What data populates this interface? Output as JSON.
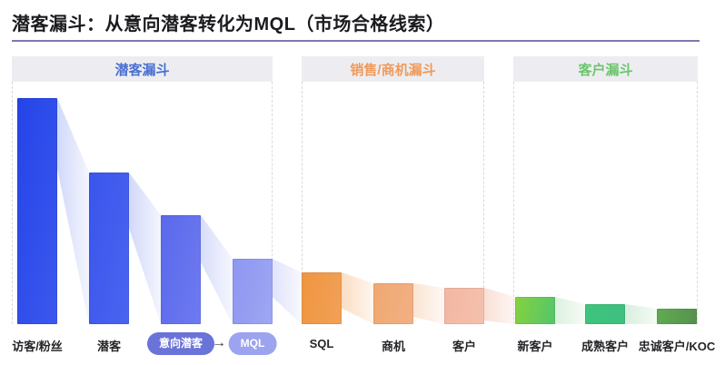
{
  "title": "潜客漏斗：从意向潜客转化为MQL（市场合格线索）",
  "title_underline_color": "#7f78ab",
  "sections": [
    {
      "label": "潜客漏斗",
      "color": "#4a6fd0",
      "band_bg": "#ededf1"
    },
    {
      "label": "销售/商机漏斗",
      "color": "#f09a5a",
      "band_bg": "#ededf1"
    },
    {
      "label": "客户漏斗",
      "color": "#6cc46e",
      "band_bg": "#ededf1"
    }
  ],
  "flow": {
    "arrow": "→"
  },
  "highlight_pills": [
    {
      "label": "意向潜客",
      "bg": "#6a73d8",
      "text_color": "#ffffff"
    },
    {
      "label": "MQL",
      "bg": "#9ca3ef",
      "text_color": "#ffffff"
    }
  ],
  "chart_data": {
    "type": "bar",
    "subtype": "funnel-flow",
    "title": "潜客漏斗：从意向潜客转化为MQL（市场合格线索）",
    "xlabel": "",
    "ylabel": "",
    "ylim": [
      0,
      100
    ],
    "grid": false,
    "legend": false,
    "note": "No numeric axis shown; values are relative bar heights with the first stage = 100.",
    "categories": [
      "访客/粉丝",
      "潜客",
      "意向潜客",
      "MQL",
      "SQL",
      "商机",
      "客户",
      "新客户",
      "成熟客户",
      "忠诚客户/KOC"
    ],
    "values": [
      100,
      67,
      48,
      29,
      23,
      18,
      16,
      12,
      9,
      7
    ],
    "highlighted_categories": [
      "意向潜客",
      "MQL"
    ],
    "groups": [
      {
        "name": "潜客漏斗",
        "categories": [
          "访客/粉丝",
          "潜客",
          "意向潜客",
          "MQL"
        ],
        "values": [
          100,
          67,
          48,
          29
        ],
        "palette": "blue-purple"
      },
      {
        "name": "销售/商机漏斗",
        "categories": [
          "SQL",
          "商机",
          "客户"
        ],
        "values": [
          23,
          18,
          16
        ],
        "palette": "orange"
      },
      {
        "name": "客户漏斗",
        "categories": [
          "新客户",
          "成熟客户",
          "忠诚客户/KOC"
        ],
        "values": [
          12,
          9,
          7
        ],
        "palette": "green"
      }
    ],
    "bar_colors": [
      [
        "#2444e8",
        "#3c58ee"
      ],
      [
        "#3a55ec",
        "#4a64f0"
      ],
      [
        "#5a69ec",
        "#6e7af0"
      ],
      [
        "#8e96f1",
        "#9ea6f3"
      ],
      [
        "#f0953f",
        "#f1a158"
      ],
      [
        "#f0a870",
        "#f1b084"
      ],
      [
        "#f3b7a2",
        "#f4c0ae"
      ],
      [
        "#85d23d",
        "#54c56b"
      ],
      [
        "#3fc47b",
        "#3dbf80"
      ],
      [
        "#61ab51",
        "#55914e"
      ]
    ],
    "connector_colors": [
      "#cfd7f9",
      "#cfd7f9",
      "#d6dcfa",
      "#dfe2fb",
      "#fadcc0",
      "#fae3d0",
      "#f9ded3",
      "#dbf0de",
      "#d7eedb"
    ]
  }
}
